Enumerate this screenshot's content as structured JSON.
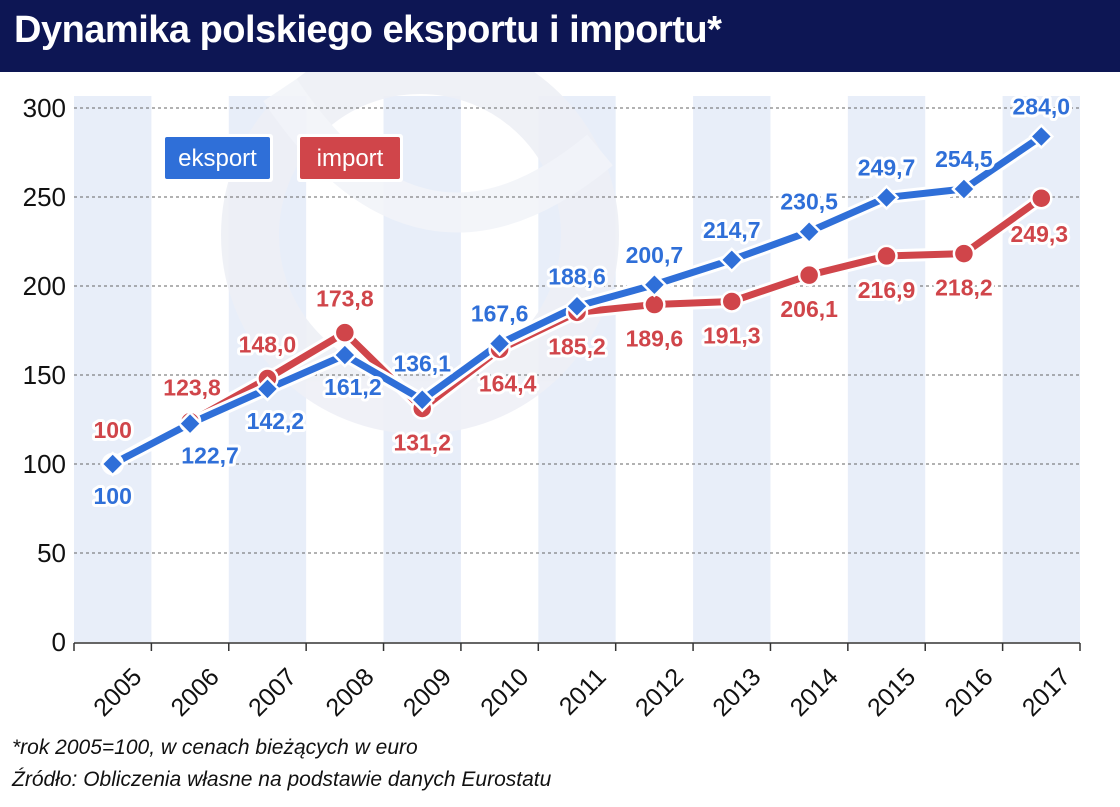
{
  "title": "Dynamika polskiego eksportu i importu*",
  "footnotes": {
    "note": "*rok 2005=100, w cenach bieżących w euro",
    "source": "Źródło: Obliczenia własne na podstawie danych Eurostatu"
  },
  "colors": {
    "header": "#0d1654",
    "export": "#2f6fd8",
    "import": "#d0454a",
    "band": "#e8eef9"
  },
  "chart_data": {
    "type": "line",
    "x": [
      "2005",
      "2006",
      "2007",
      "2008",
      "2009",
      "2010",
      "2011",
      "2012",
      "2013",
      "2014",
      "2015",
      "2016",
      "2017"
    ],
    "series": [
      {
        "name": "eksport",
        "marker": "diamond",
        "values": [
          100,
          122.7,
          142.2,
          161.2,
          136.1,
          167.6,
          188.6,
          200.7,
          214.7,
          230.5,
          249.7,
          254.5,
          284.0
        ],
        "labels": [
          "100",
          "122,7",
          "142,2",
          "161,2",
          "136,1",
          "167,6",
          "188,6",
          "200,7",
          "214,7",
          "230,5",
          "249,7",
          "254,5",
          "284,0"
        ]
      },
      {
        "name": "import",
        "marker": "circle",
        "values": [
          100,
          123.8,
          148.0,
          173.8,
          131.2,
          164.4,
          185.2,
          189.6,
          191.3,
          206.1,
          216.9,
          218.2,
          249.3
        ],
        "labels": [
          "100",
          "123,8",
          "148,0",
          "173,8",
          "131,2",
          "164,4",
          "185,2",
          "189,6",
          "191,3",
          "206,1",
          "216,9",
          "218,2",
          "249,3"
        ]
      }
    ],
    "ylim": [
      0,
      300
    ],
    "yticks": [
      "0",
      "50",
      "100",
      "150",
      "200",
      "250",
      "300"
    ],
    "grid": true,
    "legend": "top-left"
  }
}
